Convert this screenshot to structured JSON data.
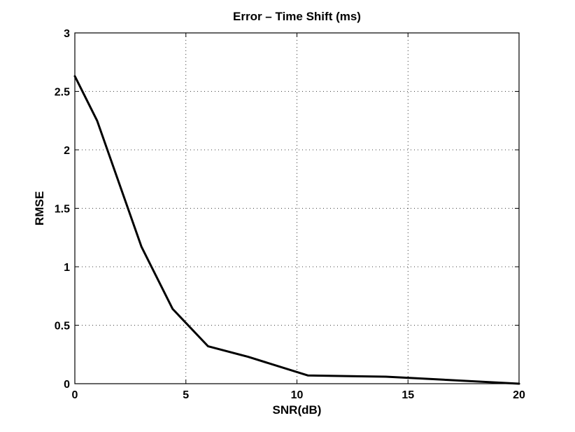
{
  "chart_data": {
    "type": "line",
    "title": "Error – Time Shift (ms)",
    "xlabel": "SNR(dB)",
    "ylabel": "RMSE",
    "xlim": [
      0,
      20
    ],
    "ylim": [
      0,
      3
    ],
    "xticks": [
      0,
      5,
      10,
      15,
      20
    ],
    "xtick_labels": [
      "0",
      "5",
      "10",
      "15",
      "20"
    ],
    "yticks": [
      0,
      0.5,
      1,
      1.5,
      2,
      2.5,
      3
    ],
    "ytick_labels": [
      "0",
      "0.5",
      "1",
      "1.5",
      "2",
      "2.5",
      "3"
    ],
    "grid": true,
    "series": [
      {
        "color": "#000000",
        "x": [
          0,
          1,
          3,
          4.4,
          6,
          7.8,
          10.5,
          14,
          15,
          20
        ],
        "y": [
          2.63,
          2.25,
          1.17,
          0.64,
          0.32,
          0.23,
          0.07,
          0.06,
          0.05,
          0.0
        ]
      }
    ]
  }
}
